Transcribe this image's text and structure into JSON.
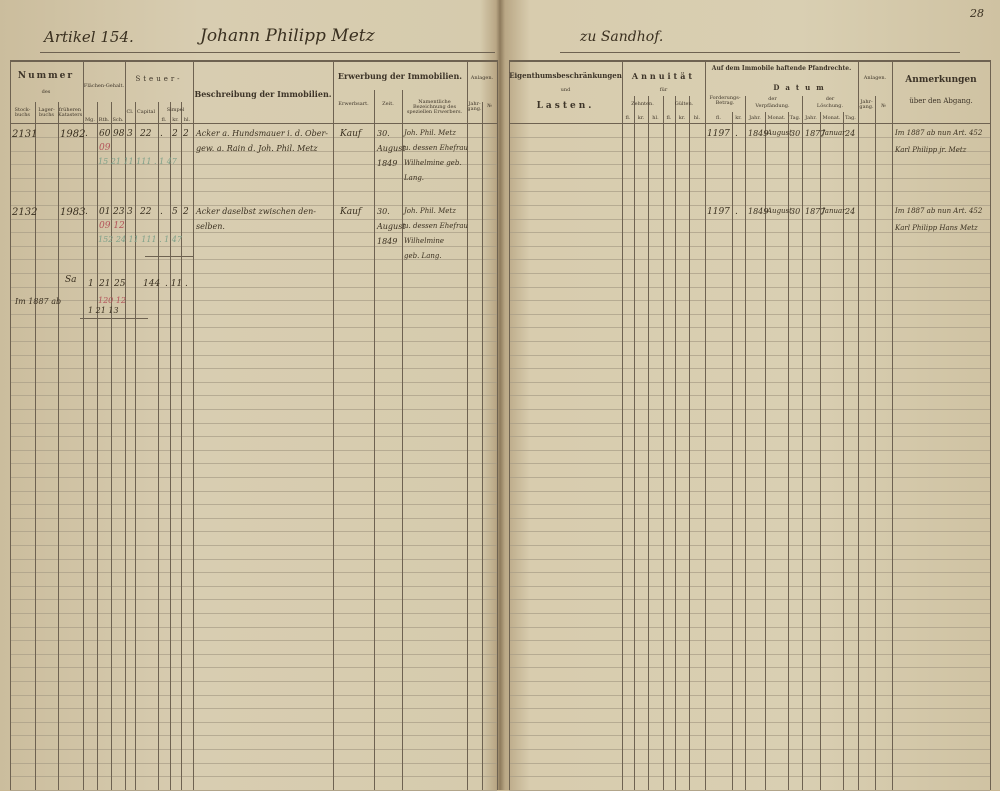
{
  "left_page": {
    "header_handwritten": {
      "article": "Artikel 154.",
      "owner": "Johann Philipp Metz"
    },
    "columns": {
      "nummer": "Nummer",
      "des": "des",
      "stockbuch": "Stock-buchs",
      "lagerbuch": "Lager-buchs",
      "fruheren_kataster": "früheren Katasters",
      "flachen": "Flächen-Gehalt.",
      "flachen_sub": [
        "Mg.",
        "Rth.",
        "Sch."
      ],
      "steuer": "Steuer-",
      "steuer_sub": [
        "Cl.",
        "Capital",
        "Simpel"
      ],
      "simpel_sub": [
        "fl.",
        "kr.",
        "hl."
      ],
      "beschreibung": "Beschreibung der Immobilien.",
      "erwerbung": "Erwerbung der Immobilien.",
      "erwerbsart": "Erwerbsart.",
      "zeit": "Zeit.",
      "erwerber": "Namentliche Bezeichnung des speziellen Erwerbers.",
      "anlagen": "Anlagen.",
      "jahrgang": "Jahr-gang.",
      "nr": "№"
    },
    "rows": [
      {
        "stock": "2131",
        "fruh": "1982",
        "dot": ".",
        "rth": "60",
        "sch": "98",
        "cl": "3",
        "capital": "22",
        "simpel_fl": ".",
        "simpel_kr": "2",
        "simpel_hl": "2",
        "red": "09",
        "green": "15  21 11  111  .  1 47",
        "beschreibung": [
          "Acker a. Hundsmauer i. d. Ober-",
          "gew. a. Rain d. Joh. Phil. Metz"
        ],
        "erwerbsart": "Kauf",
        "zeit": [
          "30.",
          "August",
          "1849"
        ],
        "erwerber": [
          "Joh. Phil. Metz",
          "u. dessen Ehefrau",
          "Wilhelmine geb.",
          "Lang."
        ]
      },
      {
        "stock": "2132",
        "fruh": "1983",
        "dot": ".",
        "rth": "01",
        "sch": "23",
        "cl": "3",
        "capital": "22",
        "simpel_fl": ".",
        "simpel_kr": "5",
        "simpel_hl": "2",
        "red": "09 12",
        "green": "152 24 11  111  .  1 47",
        "beschreibung": [
          "Acker daselbst zwischen den-",
          "selben."
        ],
        "erwerbsart": "Kauf",
        "zeit": [
          "30.",
          "August",
          "1849"
        ],
        "erwerber": [
          "Joh. Phil. Metz",
          "u. dessen Ehefrau",
          "Wilhelmine",
          "geb. Lang."
        ]
      }
    ],
    "totals": {
      "label": "Sa",
      "mg": "1",
      "rth": "21",
      "sch": "25",
      "capital": "144",
      "simpel": ". 11 .",
      "note": "Im 1887 ab",
      "red": "120 12",
      "final": "1  21  13"
    }
  },
  "right_page": {
    "page_number": "28",
    "header_handwritten": "zu Sandhof.",
    "columns": {
      "eigenthum": "Eigenthumsbeschränkungen",
      "und": "und",
      "lasten": "Lasten.",
      "annuitat": "Annuität",
      "fur": "für",
      "zehnten": "Zehnten.",
      "gulten": "Gülten.",
      "money_sub": [
        "fl.",
        "kr.",
        "hl."
      ],
      "pfandrechte": "Auf dem Immobile haftende Pfandrechte.",
      "forderung": "Forderungs-Betrag.",
      "forderung_sub": [
        "fl.",
        "kr."
      ],
      "datum": "Datum",
      "der": "der",
      "verpfandung": "Verpfändung.",
      "loschung": "Löschung.",
      "date_sub": [
        "Jahr.",
        "Monat.",
        "Tag."
      ],
      "anlagen": "Anlagen.",
      "jahrgang": "Jahr-gang.",
      "nr": "№",
      "anmerkungen": "Anmerkungen",
      "uber": "über den Abgang."
    },
    "rows": [
      {
        "betrag": "1197",
        "kr": ".",
        "v_jahr": "1849",
        "v_monat": "August",
        "v_tag": "30",
        "l_jahr": "1877",
        "l_monat": "Januar",
        "l_tag": "24",
        "anmerkung": [
          "Im 1887 ab nun Art. 452",
          "Karl Philipp jr. Metz"
        ]
      },
      {
        "betrag": "1197",
        "kr": ".",
        "v_jahr": "1849",
        "v_monat": "August",
        "v_tag": "30",
        "l_jahr": "1877",
        "l_monat": "Januar",
        "l_tag": "24",
        "anmerkung": [
          "Im 1887 ab nun Art. 452",
          "Karl Philipp Hans Metz"
        ]
      }
    ]
  }
}
